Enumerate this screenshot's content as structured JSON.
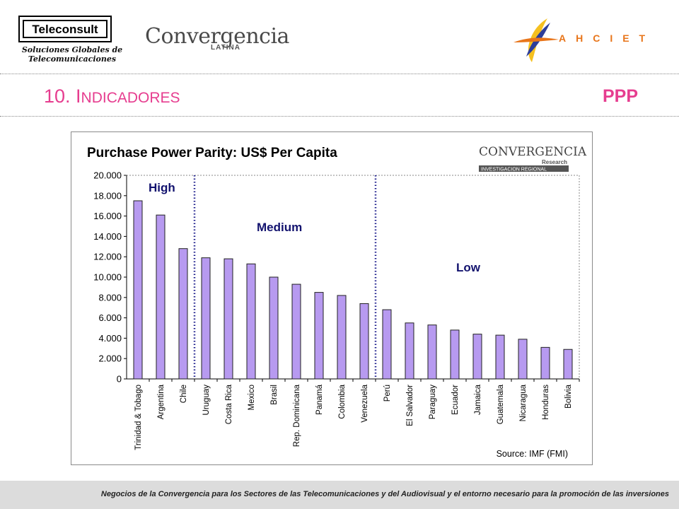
{
  "header": {
    "teleconsult_name": "Teleconsult",
    "teleconsult_tagline_1": "Soluciones Globales de",
    "teleconsult_tagline_2": "Telecomunicaciones",
    "convergencia_name": "Convergencia",
    "convergencia_sub": "LATINA",
    "ahciet_name": "AHCIET"
  },
  "slide": {
    "title_number": "10. I",
    "title_rest": "NDICADORES",
    "tag": "PPP"
  },
  "colors": {
    "accent": "#e63d8f",
    "bar_fill": "#b79af0",
    "bar_stroke": "#222222",
    "divider": "#1c1c8c"
  },
  "chart_data": {
    "type": "bar",
    "title": "Purchase Power Parity: US$ Per Capita",
    "logo_main": "CONVERGENCIA",
    "logo_sub1": "Research",
    "logo_sub2": "INVESTIGACION REGIONAL",
    "categories": [
      "Trinidad & Tobago",
      "Argentina",
      "Chile",
      "Uruguay",
      "Costa Rica",
      "Mexico",
      "Brasil",
      "Rep. Dominicana",
      "Panamá",
      "Colombia",
      "Venezuela",
      "Perú",
      "El Salvador",
      "Paraguay",
      "Ecuador",
      "Jamaica",
      "Guatemala",
      "Nicaragua",
      "Honduras",
      "Bolivia"
    ],
    "values": [
      17500,
      16100,
      12800,
      11900,
      11800,
      11300,
      10000,
      9300,
      8500,
      8200,
      7400,
      6800,
      5500,
      5300,
      4800,
      4400,
      4300,
      3900,
      3100,
      2900
    ],
    "ylim": [
      0,
      20000
    ],
    "yticks": [
      "0",
      "2.000",
      "4.000",
      "6.000",
      "8.000",
      "10.000",
      "12.000",
      "14.000",
      "16.000",
      "18.000",
      "20.000"
    ],
    "grid": false,
    "groups": [
      {
        "label": "High"
      },
      {
        "label": "Medium"
      },
      {
        "label": "Low"
      }
    ],
    "source": "Source: IMF (FMI)"
  },
  "footer": {
    "text": "Negocios de la Convergencia para los  Sectores de las Telecomunicaciones y del Audiovisual y el entorno necesario para la promoción de las inversiones"
  }
}
